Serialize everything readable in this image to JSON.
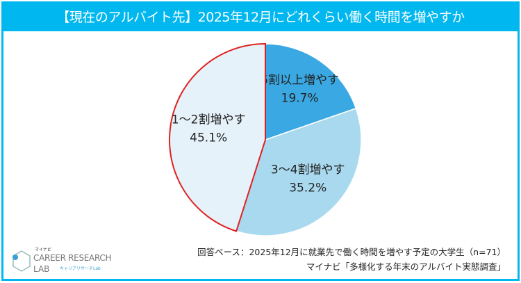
{
  "chart_data": {
    "type": "pie",
    "title": "【現在のアルバイト先】2025年12月にどれくらい働く時間を増やすか",
    "start": "12 o'clock, clockwise",
    "slices": [
      {
        "label": "5割以上増やす",
        "value": 19.7,
        "display": "19.7%",
        "color": "#3aa8e2"
      },
      {
        "label": "3～4割増やす",
        "value": 35.2,
        "display": "35.2%",
        "color": "#a9d9ee"
      },
      {
        "label": "1～2割増やす",
        "value": 45.1,
        "display": "45.1%",
        "color": "#e6f2fa",
        "highlight": "#e02020"
      }
    ]
  },
  "footer": {
    "base": "回答ベース：2025年12月に就業先で働く時間を増やす予定の大学生（n=71）",
    "source": "マイナビ「多様化する年末のアルバイト実態調査」"
  },
  "logo": {
    "brand": "マイナビ",
    "line1": "CAREER RESEARCH",
    "line2": "LAB",
    "line3": "キャリアリサーチLab"
  }
}
